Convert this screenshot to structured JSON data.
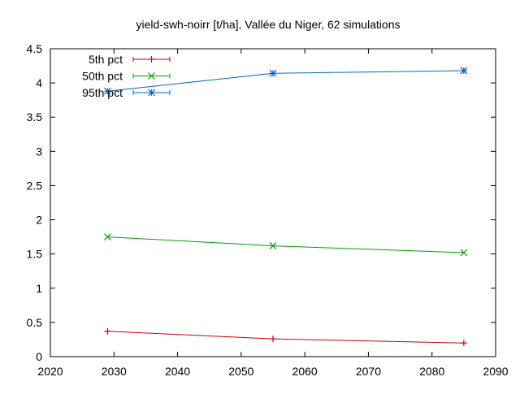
{
  "chart_data": {
    "type": "line",
    "title": "yield-swh-noirr [t/ha], Vallée du Niger, 62 simulations",
    "xlabel": "",
    "ylabel": "",
    "xlim": [
      2020,
      2090
    ],
    "ylim": [
      0,
      4.5
    ],
    "x_ticks": [
      "2020",
      "2030",
      "2040",
      "2050",
      "2060",
      "2070",
      "2080",
      "2090"
    ],
    "y_ticks": [
      "0",
      "0.5",
      "1",
      "1.5",
      "2",
      "2.5",
      "3",
      "3.5",
      "4",
      "4.5"
    ],
    "grid": false,
    "legend_position": "top-left",
    "x": [
      2029,
      2055,
      2085
    ],
    "series": [
      {
        "name": "5th pct",
        "color": "#cc0000",
        "marker": "plus",
        "values": [
          0.37,
          0.26,
          0.2
        ]
      },
      {
        "name": "50th pct",
        "color": "#00a000",
        "marker": "cross",
        "values": [
          1.75,
          1.62,
          1.52
        ]
      },
      {
        "name": "95th pct",
        "color": "#0066cc",
        "marker": "star",
        "values": [
          3.88,
          4.14,
          4.18
        ]
      }
    ]
  }
}
